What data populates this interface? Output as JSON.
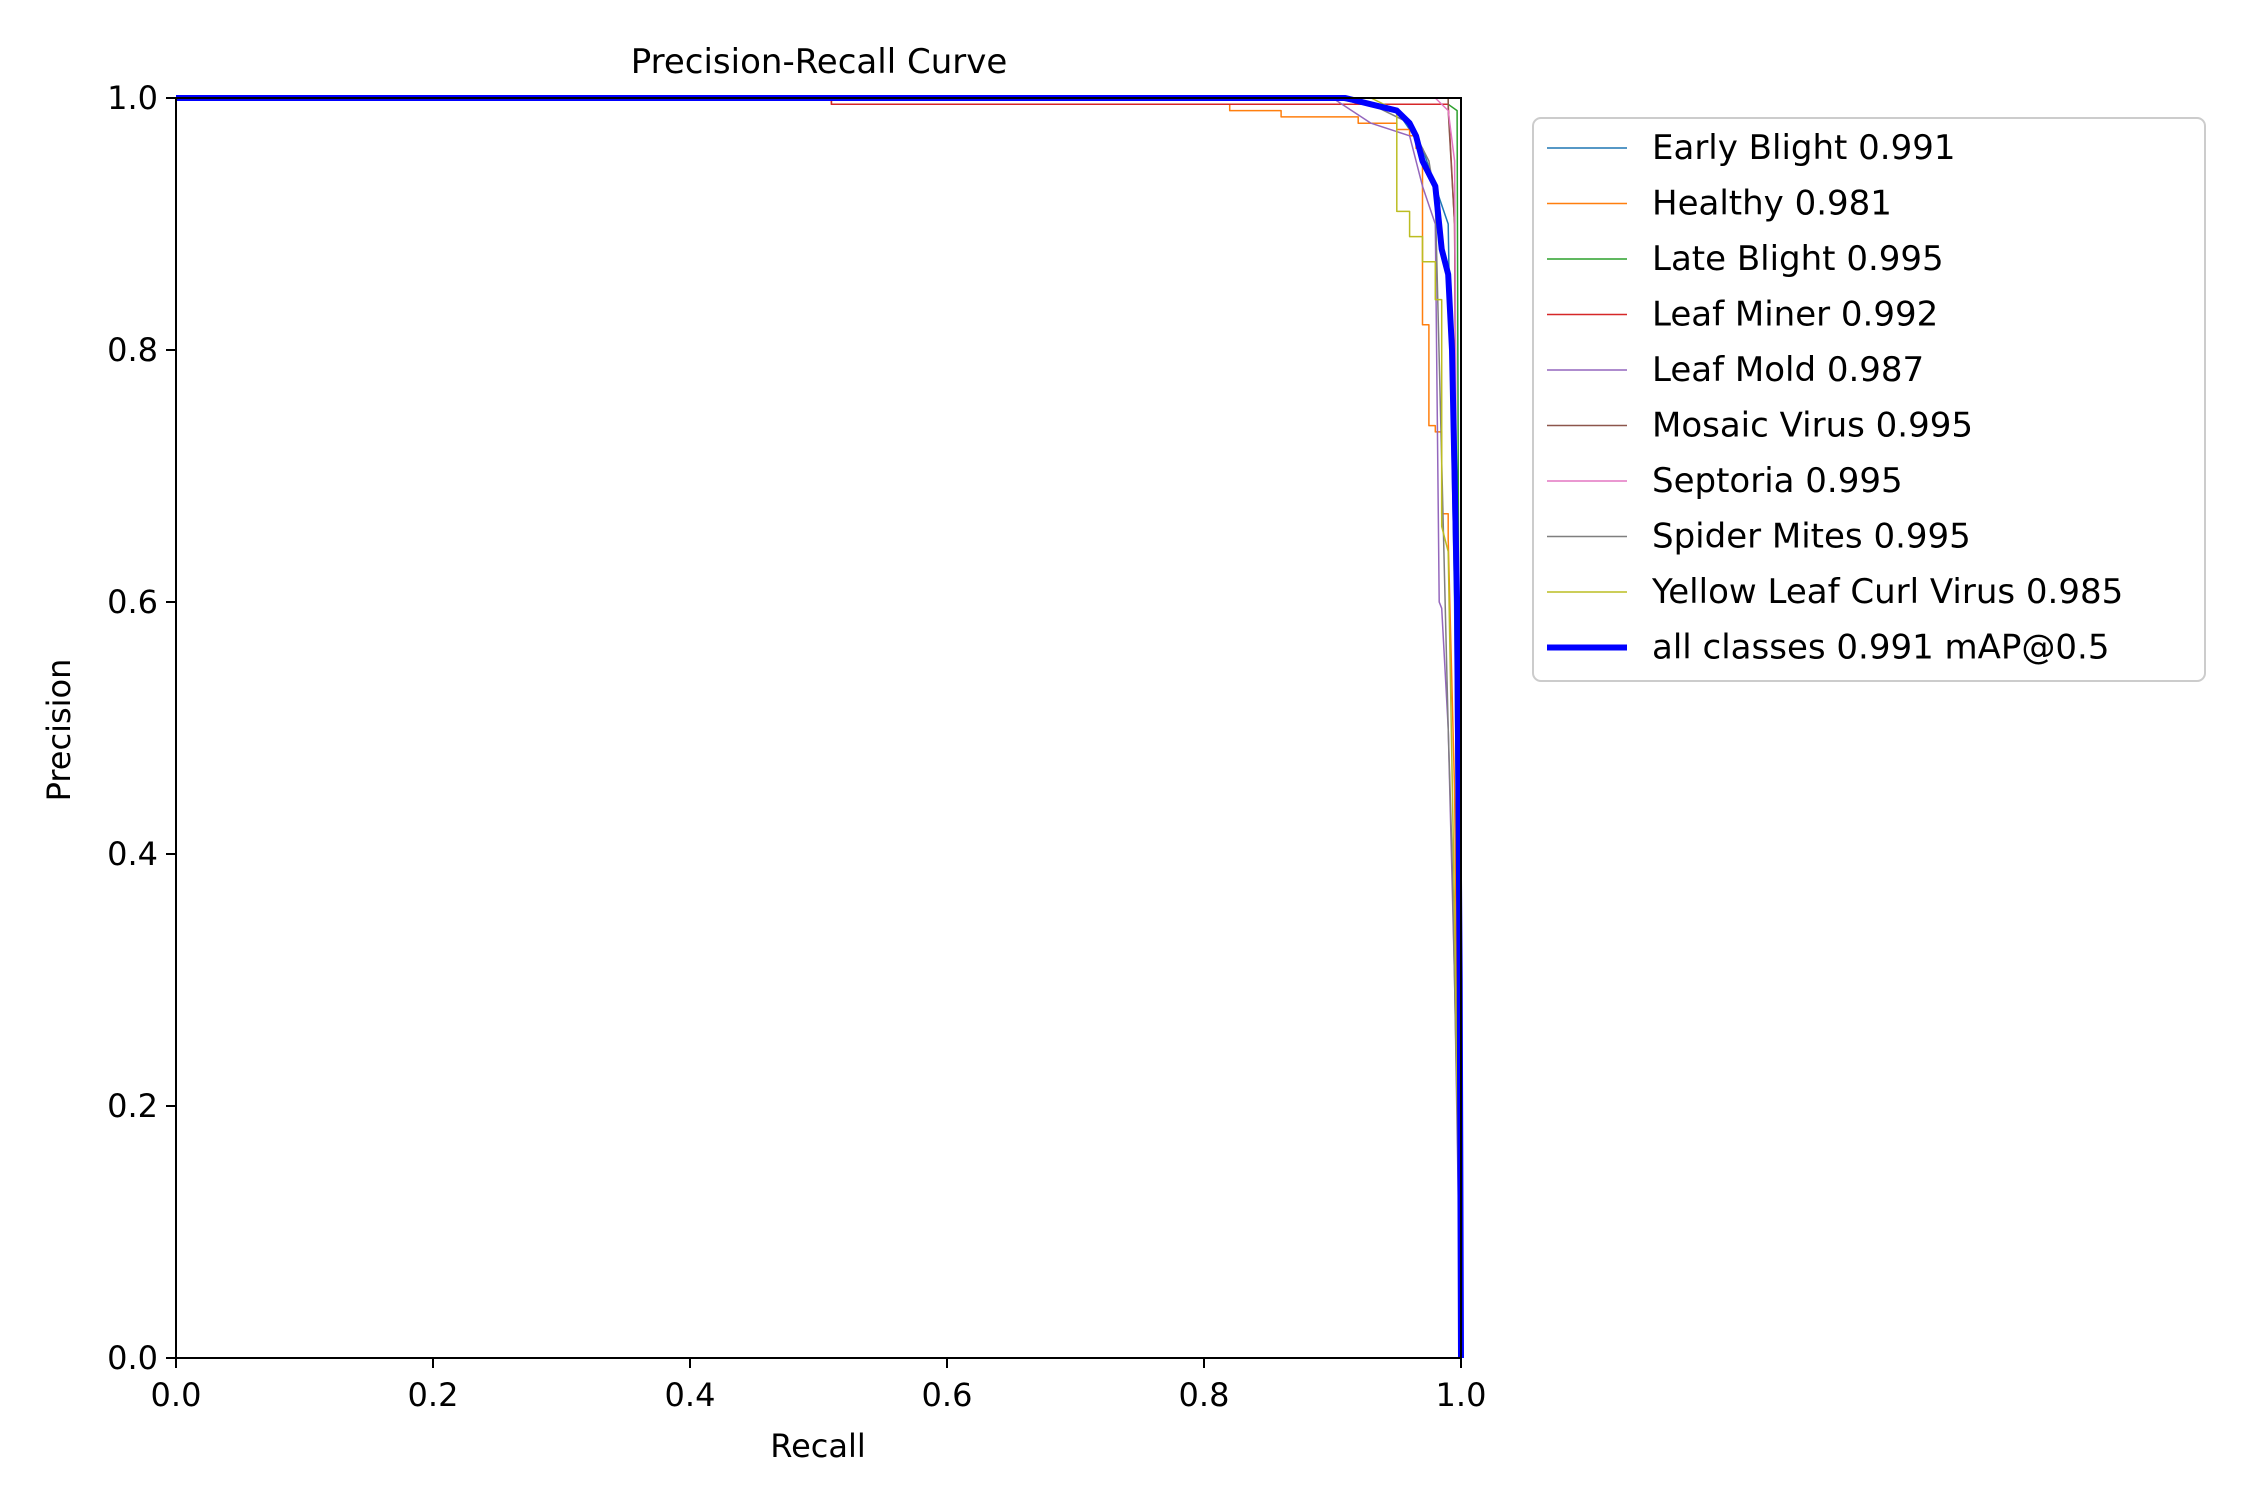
{
  "chart_data": {
    "type": "line",
    "title": "Precision-Recall Curve",
    "xlabel": "Recall",
    "ylabel": "Precision",
    "xlim": [
      0,
      1
    ],
    "ylim": [
      0,
      1
    ],
    "xticks": [
      "0.0",
      "0.2",
      "0.4",
      "0.6",
      "0.8",
      "1.0"
    ],
    "yticks": [
      "0.0",
      "0.2",
      "0.4",
      "0.6",
      "0.8",
      "1.0"
    ],
    "grid": false,
    "legend_position": "outside right, top",
    "series": [
      {
        "name": "Early Blight 0.991",
        "color": "#1f77b4",
        "width": 1.5,
        "x": [
          0,
          0.9,
          0.95,
          0.97,
          0.98,
          0.99,
          0.995,
          1.0
        ],
        "y": [
          1.0,
          1.0,
          0.99,
          0.96,
          0.93,
          0.9,
          0.6,
          0.0
        ]
      },
      {
        "name": "Healthy 0.981",
        "color": "#ff7f0e",
        "width": 1.5,
        "x": [
          0,
          0.51,
          0.51,
          0.82,
          0.82,
          0.86,
          0.86,
          0.92,
          0.92,
          0.95,
          0.95,
          0.96,
          0.96,
          0.965,
          0.965,
          0.97,
          0.97,
          0.975,
          0.975,
          0.98,
          0.98,
          0.985,
          0.985,
          0.99,
          0.99,
          0.995,
          1.0
        ],
        "y": [
          1.0,
          1.0,
          0.995,
          0.995,
          0.99,
          0.99,
          0.985,
          0.985,
          0.98,
          0.98,
          0.975,
          0.975,
          0.97,
          0.97,
          0.96,
          0.96,
          0.82,
          0.82,
          0.74,
          0.74,
          0.735,
          0.735,
          0.67,
          0.67,
          0.65,
          0.45,
          0.0
        ]
      },
      {
        "name": "Late Blight 0.995",
        "color": "#2ca02c",
        "width": 1.5,
        "x": [
          0,
          0.99,
          0.99,
          0.997,
          1.0
        ],
        "y": [
          1.0,
          1.0,
          0.995,
          0.99,
          0.0
        ]
      },
      {
        "name": "Leaf Miner 0.992",
        "color": "#d62728",
        "width": 1.5,
        "x": [
          0,
          0.51,
          0.51,
          0.98,
          0.99,
          0.995,
          1.0
        ],
        "y": [
          1.0,
          1.0,
          0.995,
          0.995,
          0.995,
          0.9,
          0.0
        ]
      },
      {
        "name": "Leaf Mold 0.987",
        "color": "#9467bd",
        "width": 1.5,
        "x": [
          0,
          0.9,
          0.93,
          0.96,
          0.97,
          0.98,
          0.983,
          0.985,
          0.99,
          0.995,
          1.0
        ],
        "y": [
          1.0,
          1.0,
          0.98,
          0.97,
          0.93,
          0.9,
          0.6,
          0.595,
          0.5,
          0.3,
          0.0
        ]
      },
      {
        "name": "Mosaic Virus 0.995",
        "color": "#8c564b",
        "width": 1.5,
        "x": [
          0,
          0.99,
          0.99,
          0.995,
          1.0
        ],
        "y": [
          1.0,
          1.0,
          0.99,
          0.9,
          0.0
        ]
      },
      {
        "name": "Septoria 0.995",
        "color": "#e377c2",
        "width": 1.5,
        "x": [
          0,
          0.98,
          0.99,
          0.995,
          1.0
        ],
        "y": [
          1.0,
          1.0,
          0.99,
          0.95,
          0.0
        ]
      },
      {
        "name": "Spider Mites 0.995",
        "color": "#7f7f7f",
        "width": 1.5,
        "x": [
          0,
          0.92,
          0.96,
          0.975,
          0.98,
          0.99,
          0.993,
          0.997,
          1.0
        ],
        "y": [
          1.0,
          1.0,
          0.98,
          0.95,
          0.92,
          0.5,
          0.4,
          0.2,
          0.0
        ]
      },
      {
        "name": "Yellow Leaf Curl Virus 0.985",
        "color": "#bcbd22",
        "width": 1.5,
        "x": [
          0,
          0.93,
          0.95,
          0.95,
          0.96,
          0.96,
          0.97,
          0.97,
          0.98,
          0.98,
          0.985,
          0.985,
          0.99,
          0.995,
          1.0
        ],
        "y": [
          1.0,
          1.0,
          0.99,
          0.91,
          0.91,
          0.89,
          0.89,
          0.87,
          0.87,
          0.84,
          0.84,
          0.66,
          0.64,
          0.35,
          0.0
        ]
      },
      {
        "name": "all classes 0.991 mAP@0.5",
        "color": "#0000ff",
        "width": 6,
        "x": [
          0,
          0.91,
          0.93,
          0.95,
          0.96,
          0.965,
          0.97,
          0.975,
          0.98,
          0.985,
          0.99,
          0.993,
          0.995,
          0.997,
          0.999,
          1.0
        ],
        "y": [
          1.0,
          1.0,
          0.995,
          0.99,
          0.98,
          0.97,
          0.95,
          0.94,
          0.93,
          0.88,
          0.86,
          0.8,
          0.7,
          0.6,
          0.3,
          0.0
        ]
      }
    ]
  }
}
